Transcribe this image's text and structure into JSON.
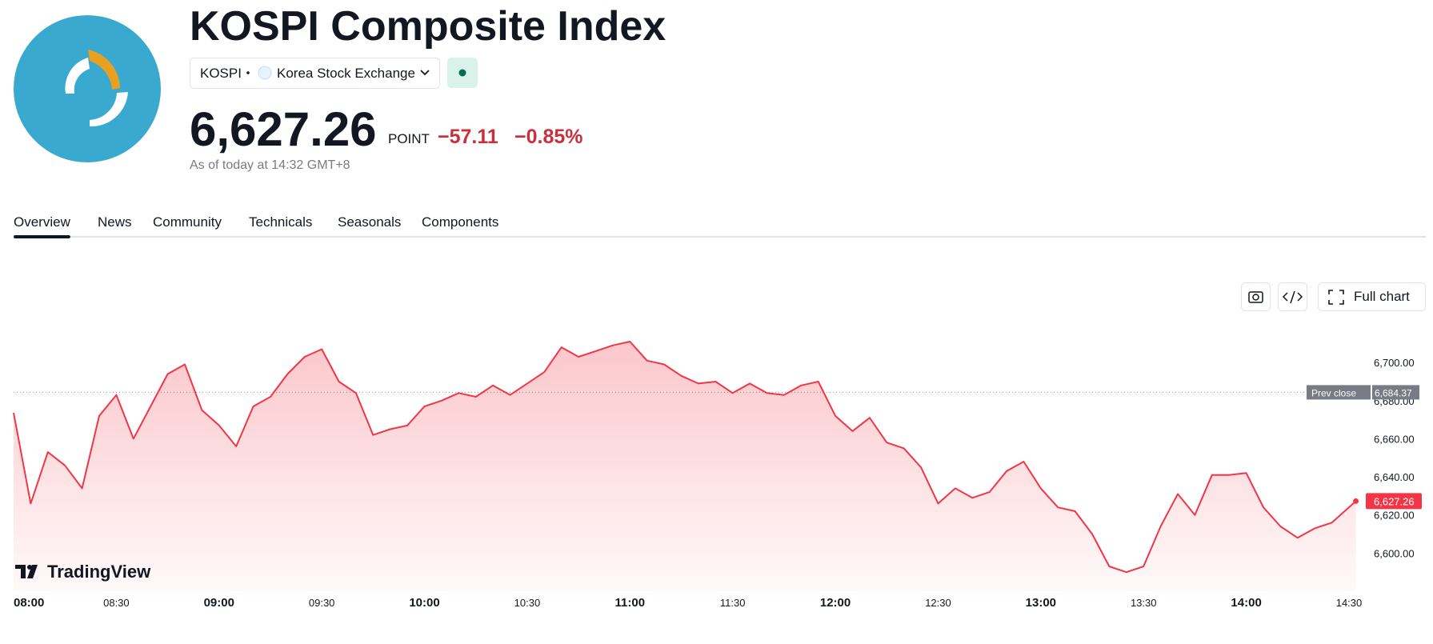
{
  "header": {
    "title": "KOSPI Composite Index",
    "symbol": "KOSPI",
    "exchange": "Korea Stock Exchange",
    "price": "6,627.26",
    "unit": "POINT",
    "change": "−57.11",
    "change_pct": "−0.85%",
    "as_of": "As of today at 14:32 GMT+8"
  },
  "tabs": [
    "Overview",
    "News",
    "Community",
    "Technicals",
    "Seasonals",
    "Components"
  ],
  "buttons": {
    "full_chart": "Full chart"
  },
  "brand": "TradingView",
  "chart_data": {
    "type": "line",
    "color": "#f23645",
    "x": [
      "08:00",
      "08:05",
      "08:10",
      "08:15",
      "08:20",
      "08:25",
      "08:30",
      "08:35",
      "08:40",
      "08:45",
      "08:50",
      "08:55",
      "09:00",
      "09:05",
      "09:10",
      "09:15",
      "09:20",
      "09:25",
      "09:30",
      "09:35",
      "09:40",
      "09:45",
      "09:50",
      "09:55",
      "10:00",
      "10:05",
      "10:10",
      "10:15",
      "10:20",
      "10:25",
      "10:30",
      "10:35",
      "10:40",
      "10:45",
      "10:50",
      "10:55",
      "11:00",
      "11:05",
      "11:10",
      "11:15",
      "11:20",
      "11:25",
      "11:30",
      "11:35",
      "11:40",
      "11:45",
      "11:50",
      "11:55",
      "12:00",
      "12:05",
      "12:10",
      "12:15",
      "12:20",
      "12:25",
      "12:30",
      "12:35",
      "12:40",
      "12:45",
      "12:50",
      "12:55",
      "13:00",
      "13:05",
      "13:10",
      "13:15",
      "13:20",
      "13:25",
      "13:30",
      "13:35",
      "13:40",
      "13:45",
      "13:50",
      "13:55",
      "14:00",
      "14:05",
      "14:10",
      "14:15",
      "14:20",
      "14:25",
      "14:32"
    ],
    "values": [
      6673.6,
      6626,
      6653,
      6646,
      6634,
      6672,
      6683,
      6660,
      6677,
      6694,
      6699,
      6675,
      6667,
      6656,
      6677,
      6682,
      6694,
      6703,
      6707,
      6690,
      6684,
      6662,
      6665,
      6667,
      6677,
      6680,
      6684,
      6682,
      6688,
      6683,
      6689,
      6695,
      6708,
      6703,
      6706,
      6709,
      6711,
      6701,
      6699,
      6693,
      6689,
      6690,
      6684,
      6689,
      6684,
      6683,
      6688,
      6690,
      6672,
      6664,
      6671,
      6658,
      6655,
      6645,
      6626,
      6634,
      6629,
      6632,
      6643,
      6648,
      6634,
      6624,
      6622,
      6610,
      6593,
      6590,
      6593,
      6614,
      6631,
      6620,
      6641,
      6641,
      6642,
      6624,
      6614,
      6608,
      6613,
      6616,
      6627.26
    ],
    "last_label": "6,627.26",
    "prev_close": {
      "value": 6684.37,
      "label": "6,684.37"
    },
    "prev_close_name": "Prev close",
    "ylim": [
      6580,
      6724
    ],
    "yticks": [
      {
        "value": 6600,
        "label": "6,600.00"
      },
      {
        "value": 6620,
        "label": "6,620.00"
      },
      {
        "value": 6640,
        "label": "6,640.00"
      },
      {
        "value": 6660,
        "label": "6,660.00"
      },
      {
        "value": 6680,
        "label": "6,680.00"
      },
      {
        "value": 6700,
        "label": "6,700.00"
      }
    ],
    "xlim": [
      "08:00",
      "14:30"
    ],
    "xticks": [
      "08:00",
      "08:30",
      "09:00",
      "09:30",
      "10:00",
      "10:30",
      "11:00",
      "11:30",
      "12:00",
      "12:30",
      "13:00",
      "13:30",
      "14:00",
      "14:30"
    ]
  }
}
